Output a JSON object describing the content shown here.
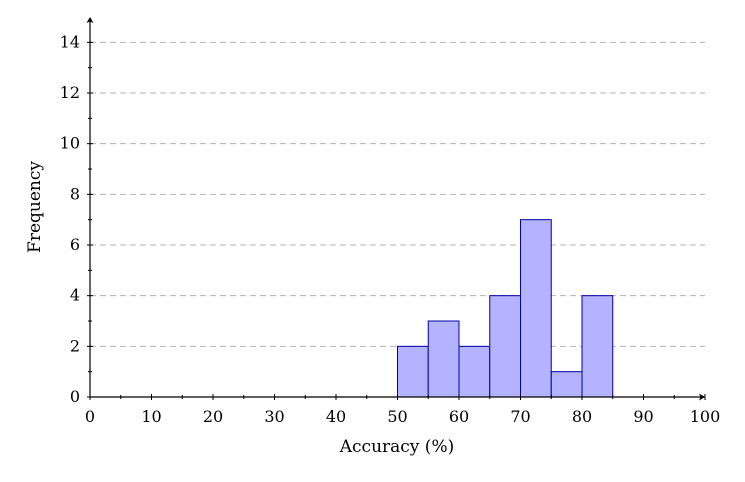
{
  "chart_data": {
    "type": "bar",
    "bins": [
      {
        "x0": 50,
        "x1": 55,
        "value": 2
      },
      {
        "x0": 55,
        "x1": 60,
        "value": 3
      },
      {
        "x0": 60,
        "x1": 65,
        "value": 2
      },
      {
        "x0": 65,
        "x1": 70,
        "value": 4
      },
      {
        "x0": 70,
        "x1": 75,
        "value": 7
      },
      {
        "x0": 75,
        "x1": 80,
        "value": 1
      },
      {
        "x0": 80,
        "x1": 85,
        "value": 4
      }
    ],
    "xlabel": "Accuracy (%)",
    "ylabel": "Frequency",
    "xlim": [
      0,
      100
    ],
    "ylim": [
      0,
      15
    ],
    "xticks": [
      0,
      10,
      20,
      30,
      40,
      50,
      60,
      70,
      80,
      90,
      100
    ],
    "yticks": [
      0,
      2,
      4,
      6,
      8,
      10,
      12,
      14
    ],
    "grid": "horizontal dashed",
    "bar_fill": "#b3b3ff",
    "bar_stroke": "#0000a8",
    "grid_color": "#b3b3b3"
  }
}
